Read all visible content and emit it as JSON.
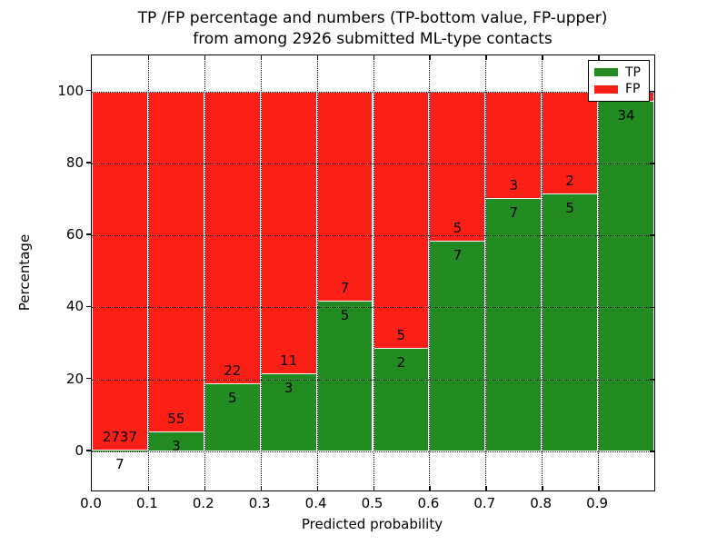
{
  "title": {
    "line1": "TP /FP percentage and numbers (TP-bottom value, FP-upper)",
    "line2": "from among 2926 submitted ML-type contacts"
  },
  "axes": {
    "xlabel": "Predicted probability",
    "ylabel": "Percentage",
    "yticks": [
      0,
      20,
      40,
      60,
      80,
      100
    ],
    "xtick_labels": [
      "0.0",
      "0.1",
      "0.2",
      "0.3",
      "0.4",
      "0.5",
      "0.6",
      "0.7",
      "0.8",
      "0.9"
    ],
    "grid": "dotted"
  },
  "legend": {
    "items": [
      {
        "label": "TP",
        "color": "#228b22"
      },
      {
        "label": "FP",
        "color": "#fb2016"
      }
    ],
    "position": "upper right"
  },
  "colors": {
    "tp": "#228b22",
    "fp": "#fb2016",
    "bar_edge": "#ffffff",
    "text": "#000000"
  },
  "chart_data": {
    "type": "bar",
    "stacked": true,
    "title": "TP /FP percentage and numbers (TP-bottom value, FP-upper) from among 2926 submitted ML-type contacts",
    "xlabel": "Predicted probability",
    "ylabel": "Percentage",
    "xlim": [
      0,
      1
    ],
    "ylim": [
      -10.9,
      110
    ],
    "bin_width": 0.1,
    "bin_starts": [
      0.0,
      0.1,
      0.2,
      0.3,
      0.4,
      0.5,
      0.6,
      0.7,
      0.8,
      0.9
    ],
    "series": [
      {
        "name": "TP",
        "color": "#228b22",
        "counts": [
          7,
          3,
          5,
          3,
          5,
          2,
          7,
          7,
          5,
          34
        ]
      },
      {
        "name": "FP",
        "color": "#fb2016",
        "counts": [
          2737,
          55,
          22,
          11,
          7,
          5,
          5,
          3,
          2,
          null
        ]
      }
    ],
    "tp_percent": [
      0.26,
      5.17,
      18.52,
      21.43,
      41.67,
      28.57,
      58.33,
      70.0,
      71.43,
      97.14
    ],
    "tp_labels": [
      "7",
      "3",
      "5",
      "3",
      "5",
      "2",
      "7",
      "7",
      "5",
      "34"
    ],
    "fp_labels": [
      "2737",
      "55",
      "22",
      "11",
      "7",
      "5",
      "5",
      "3",
      "2",
      ""
    ]
  }
}
